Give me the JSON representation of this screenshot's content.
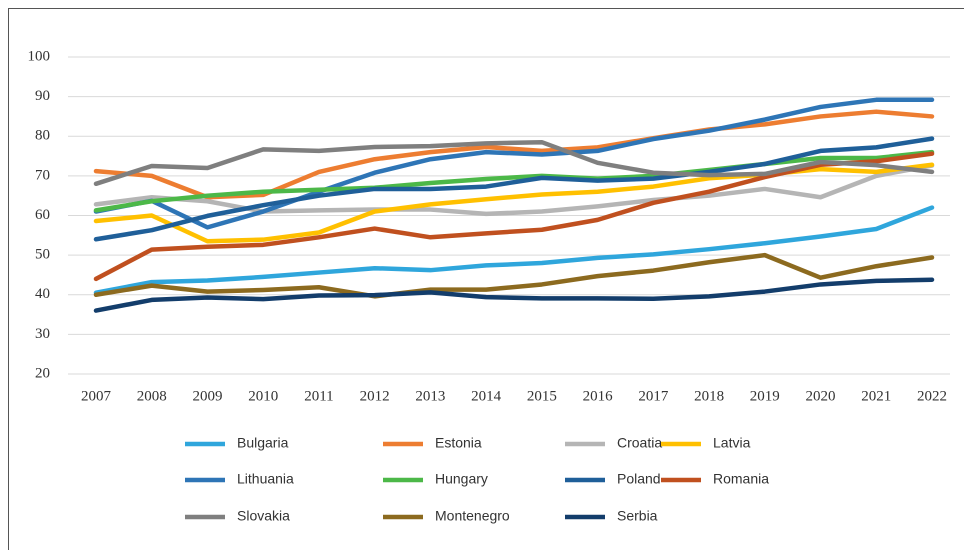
{
  "chart_data": {
    "type": "line",
    "x": [
      "2007",
      "2008",
      "2009",
      "2010",
      "2011",
      "2012",
      "2013",
      "2014",
      "2015",
      "2016",
      "2017",
      "2018",
      "2019",
      "2020",
      "2021",
      "2022"
    ],
    "ylim": [
      20,
      100
    ],
    "yticks": [
      20,
      30,
      40,
      50,
      60,
      70,
      80,
      90,
      100
    ],
    "grid": true,
    "series": [
      {
        "name": "Bulgaria",
        "color": "#2fa6dc",
        "values": [
          40.5,
          43.2,
          43.6,
          44.5,
          45.6,
          46.7,
          46.2,
          47.4,
          48,
          49.3,
          50.2,
          51.5,
          53,
          54.7,
          56.6,
          62
        ]
      },
      {
        "name": "Estonia",
        "color": "#ed7d31",
        "values": [
          71.2,
          70,
          64.6,
          65.2,
          71,
          74.2,
          76,
          77.3,
          76.3,
          77.2,
          79.5,
          81.7,
          83,
          85,
          86.2,
          85
        ]
      },
      {
        "name": "Croatia",
        "color": "#b5b5b5",
        "values": [
          62.8,
          64.6,
          63.6,
          61,
          61.3,
          61.5,
          61.5,
          60.4,
          61,
          62.3,
          63.9,
          65,
          66.7,
          64.6,
          70,
          72.6
        ]
      },
      {
        "name": "Latvia",
        "color": "#ffc000",
        "values": [
          58.6,
          60,
          53.5,
          53.9,
          55.7,
          61,
          62.8,
          64.1,
          65.3,
          66,
          67.3,
          69.4,
          70.3,
          71.7,
          71,
          72.8
        ]
      },
      {
        "name": "Lithuania",
        "color": "#2e75b6",
        "values": [
          61,
          63.7,
          57,
          61,
          66,
          70.8,
          74.2,
          76,
          75.4,
          76.3,
          79.3,
          81.4,
          84.2,
          87.4,
          89.2,
          89.2
        ]
      },
      {
        "name": "Hungary",
        "color": "#4cb848",
        "values": [
          61.3,
          63.6,
          65,
          66,
          66.5,
          67,
          68.2,
          69.2,
          70,
          69.3,
          70,
          71.5,
          73,
          74.5,
          74.5,
          76
        ]
      },
      {
        "name": "Poland",
        "color": "#1f5f99",
        "values": [
          54,
          56.3,
          59.9,
          62.6,
          65,
          66.7,
          66.7,
          67.3,
          69.5,
          68.8,
          69.3,
          71,
          73,
          76.3,
          77.2,
          79.4
        ]
      },
      {
        "name": "Romania",
        "color": "#c0501f",
        "values": [
          44,
          51.4,
          52.1,
          52.6,
          54.5,
          56.7,
          54.5,
          55.5,
          56.4,
          58.9,
          63.2,
          66,
          69.7,
          72.8,
          73.7,
          75.6
        ]
      },
      {
        "name": "Slovakia",
        "color": "#7f7f7f",
        "values": [
          68,
          72.5,
          72,
          76.7,
          76.3,
          77.3,
          77.5,
          78.2,
          78.5,
          73.3,
          70.8,
          70.2,
          70.5,
          73.5,
          72.7,
          71
        ]
      },
      {
        "name": "Montenegro",
        "color": "#8c6a1f",
        "values": [
          40,
          42.3,
          40.8,
          41.2,
          41.9,
          39.6,
          41.3,
          41.3,
          42.6,
          44.7,
          46.1,
          48.2,
          50,
          44.3,
          47.2,
          49.4
        ]
      },
      {
        "name": "Serbia",
        "color": "#133d6b",
        "values": [
          36,
          38.7,
          39.3,
          38.9,
          39.8,
          39.9,
          40.6,
          39.4,
          39.1,
          39.1,
          39,
          39.6,
          40.8,
          42.6,
          43.5,
          43.8
        ]
      }
    ]
  }
}
